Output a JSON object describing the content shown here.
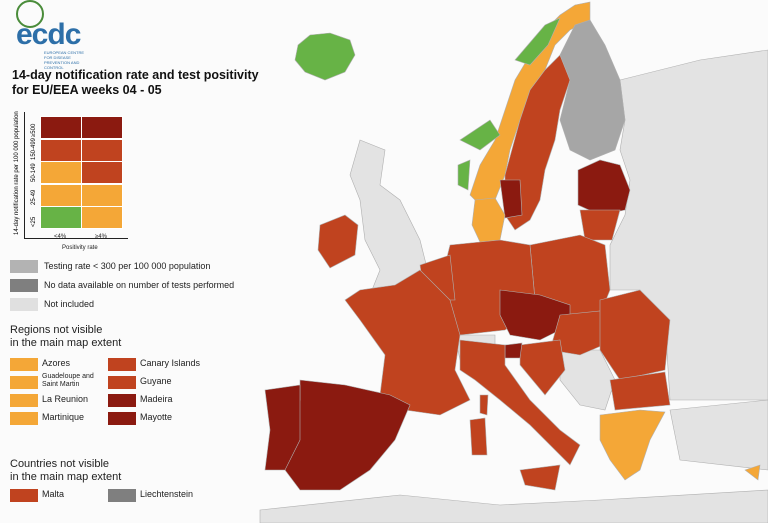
{
  "logo": {
    "text": "ecdc",
    "subtitle": "EUROPEAN CENTRE FOR DISEASE PREVENTION AND CONTROL"
  },
  "title": [
    "14-day notification rate and test positivity",
    "for EU/EEA weeks 04 - 05"
  ],
  "matrix": {
    "y_label": "14-day notification rate per 100 000 population",
    "x_label": "Positivity rate",
    "rows": [
      "≥500",
      "150-499",
      "50-149",
      "25-49",
      "<25"
    ],
    "columns": [
      "<4%",
      "≥4%"
    ],
    "cells": [
      [
        "#8b1a10",
        "#8b1a10"
      ],
      [
        "#c0431f",
        "#c0431f"
      ],
      [
        "#f4a737",
        "#c0431f"
      ],
      [
        "#f4a737",
        "#f4a737"
      ],
      [
        "#67b346",
        "#f4a737"
      ]
    ]
  },
  "legend": [
    {
      "label": "Testing rate < 300 per 100 000 population",
      "color": "#b3b3b3"
    },
    {
      "label": "No data available on number of tests performed",
      "color": "#7f7f7f"
    },
    {
      "label": "Not included",
      "color": "#e0e0e0"
    }
  ],
  "regions": {
    "title": [
      "Regions not visible",
      "in the main map extent"
    ],
    "items": [
      {
        "label": "Azores",
        "color": "#f4a737"
      },
      {
        "label": "Guadeloupe and Saint Martin",
        "color": "#f4a737"
      },
      {
        "label": "La Reunion",
        "color": "#f4a737"
      },
      {
        "label": "Martinique",
        "color": "#f4a737"
      },
      {
        "label": "Canary Islands",
        "color": "#c0431f"
      },
      {
        "label": "Guyane",
        "color": "#c0431f"
      },
      {
        "label": "Madeira",
        "color": "#8b1a10"
      },
      {
        "label": "Mayotte",
        "color": "#8b1a10"
      }
    ]
  },
  "countries": {
    "title": [
      "Countries not visible",
      "in the main map extent"
    ],
    "items": [
      {
        "label": "Malta",
        "color": "#c0431f"
      },
      {
        "label": "Liechtenstein",
        "color": "#7f7f7f"
      }
    ]
  }
}
